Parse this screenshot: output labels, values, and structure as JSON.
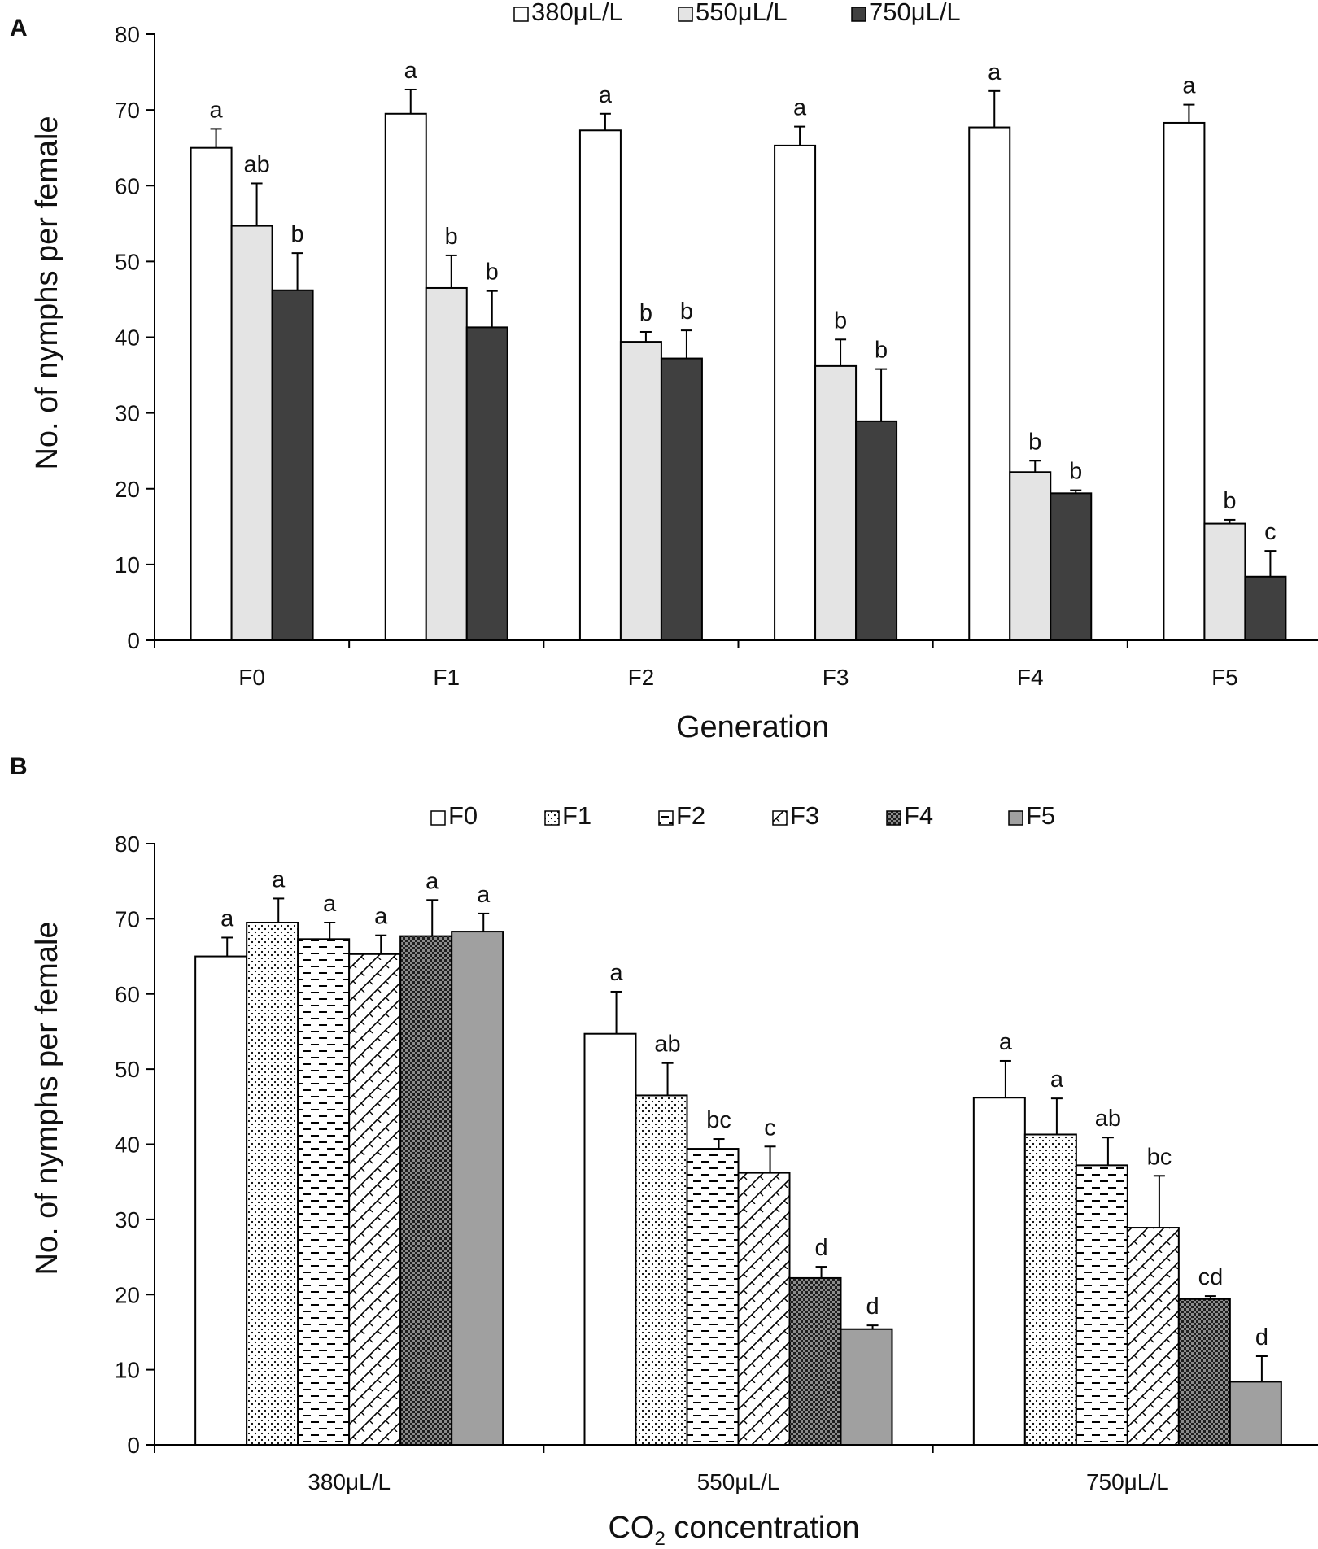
{
  "chart_data": [
    {
      "panel": "A",
      "type": "bar",
      "xlabel": "Generation",
      "ylabel": "No. of nymphs per female",
      "ylim": [
        0,
        80
      ],
      "yticks": [
        0,
        10,
        20,
        30,
        40,
        50,
        60,
        70,
        80
      ],
      "categories": [
        "F0",
        "F1",
        "F2",
        "F3",
        "F4",
        "F5"
      ],
      "series": [
        {
          "name": "380μL/L",
          "color": "#ffffff",
          "pattern": "solid",
          "values": [
            65,
            69.5,
            67.3,
            65.3,
            67.7,
            68.3
          ],
          "errors": [
            2.5,
            3.2,
            2.2,
            2.5,
            4.8,
            2.4
          ],
          "letters": [
            "a",
            "a",
            "a",
            "a",
            "a",
            "a"
          ]
        },
        {
          "name": "550μL/L",
          "color": "#e4e4e4",
          "pattern": "solid",
          "values": [
            54.7,
            46.5,
            39.4,
            36.2,
            22.2,
            15.4
          ],
          "errors": [
            5.6,
            4.3,
            1.3,
            3.5,
            1.5,
            0.5
          ],
          "letters": [
            "ab",
            "b",
            "b",
            "b",
            "b",
            "b"
          ]
        },
        {
          "name": "750μL/L",
          "color": "#404040",
          "pattern": "solid",
          "values": [
            46.2,
            41.3,
            37.2,
            28.9,
            19.4,
            8.4
          ],
          "errors": [
            4.9,
            4.8,
            3.7,
            6.9,
            0.4,
            3.4
          ],
          "letters": [
            "b",
            "b",
            "b",
            "b",
            "b",
            "c"
          ]
        }
      ]
    },
    {
      "panel": "B",
      "type": "bar",
      "xlabel_main": "CO",
      "xlabel_sub": "2",
      "xlabel_rest": " concentration",
      "ylabel": "No. of nymphs per female",
      "ylim": [
        0,
        80
      ],
      "yticks": [
        0,
        10,
        20,
        30,
        40,
        50,
        60,
        70,
        80
      ],
      "categories": [
        "380μL/L",
        "550μL/L",
        "750μL/L"
      ],
      "series": [
        {
          "name": "F0",
          "color": "#ffffff",
          "pattern": "solid",
          "values": [
            65,
            54.7,
            46.2
          ],
          "errors": [
            2.5,
            5.6,
            4.9
          ],
          "letters": [
            "a",
            "a",
            "a"
          ]
        },
        {
          "name": "F1",
          "color": "#ffffff",
          "pattern": "dots",
          "values": [
            69.5,
            46.5,
            41.3
          ],
          "errors": [
            3.2,
            4.3,
            4.8
          ],
          "letters": [
            "a",
            "ab",
            "a"
          ]
        },
        {
          "name": "F2",
          "color": "#ffffff",
          "pattern": "dashes",
          "values": [
            67.3,
            39.4,
            37.2
          ],
          "errors": [
            2.2,
            1.3,
            3.7
          ],
          "letters": [
            "a",
            "bc",
            "ab"
          ]
        },
        {
          "name": "F3",
          "color": "#ffffff",
          "pattern": "zigzag",
          "values": [
            65.3,
            36.2,
            28.9
          ],
          "errors": [
            2.5,
            3.5,
            6.9
          ],
          "letters": [
            "a",
            "c",
            "bc"
          ]
        },
        {
          "name": "F4",
          "color": "#4a4a4a",
          "pattern": "checker",
          "values": [
            67.7,
            22.2,
            19.4
          ],
          "errors": [
            4.8,
            1.5,
            0.4
          ],
          "letters": [
            "a",
            "d",
            "cd"
          ]
        },
        {
          "name": "F5",
          "color": "#a0a0a0",
          "pattern": "solid",
          "values": [
            68.3,
            15.4,
            8.4
          ],
          "errors": [
            2.4,
            0.5,
            3.4
          ],
          "letters": [
            "a",
            "d",
            "d"
          ]
        }
      ]
    }
  ]
}
